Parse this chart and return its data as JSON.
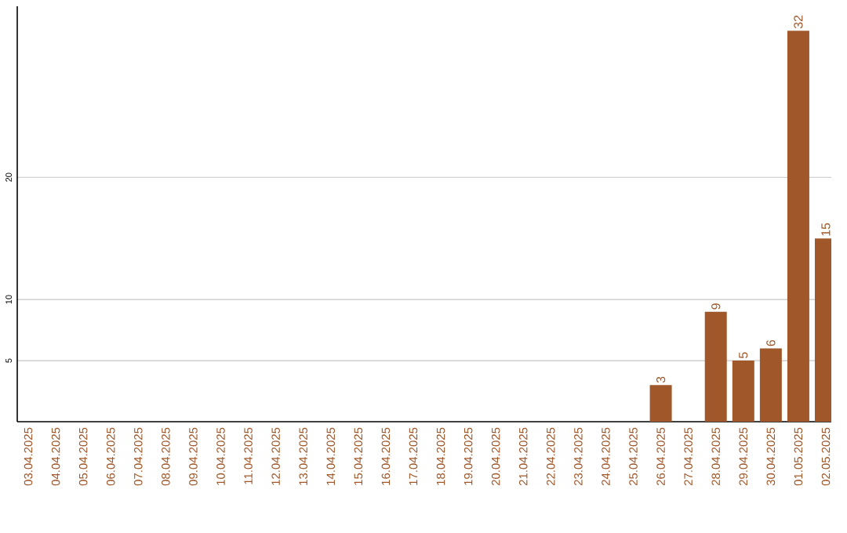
{
  "chart_data": {
    "type": "bar",
    "categories": [
      "03.04.2025",
      "04.04.2025",
      "05.04.2025",
      "06.04.2025",
      "07.04.2025",
      "08.04.2025",
      "09.04.2025",
      "10.04.2025",
      "11.04.2025",
      "12.04.2025",
      "13.04.2025",
      "14.04.2025",
      "15.04.2025",
      "16.04.2025",
      "17.04.2025",
      "18.04.2025",
      "19.04.2025",
      "20.04.2025",
      "21.04.2025",
      "22.04.2025",
      "23.04.2025",
      "24.04.2025",
      "25.04.2025",
      "26.04.2025",
      "27.04.2025",
      "28.04.2025",
      "29.04.2025",
      "30.04.2025",
      "01.05.2025",
      "02.05.2025"
    ],
    "values": [
      0,
      0,
      0,
      0,
      0,
      0,
      0,
      0,
      0,
      0,
      0,
      0,
      0,
      0,
      0,
      0,
      0,
      0,
      0,
      0,
      0,
      0,
      0,
      3,
      0,
      9,
      5,
      6,
      32,
      15
    ],
    "value_labels": [
      null,
      null,
      null,
      null,
      null,
      null,
      null,
      null,
      null,
      null,
      null,
      null,
      null,
      null,
      null,
      null,
      null,
      null,
      null,
      null,
      null,
      null,
      null,
      "3",
      null,
      "9",
      "5",
      "6",
      "32",
      "15"
    ],
    "color": "#a0582a",
    "ylim": [
      0,
      34
    ],
    "yticks": [
      5,
      10,
      20
    ],
    "grid": "y"
  }
}
